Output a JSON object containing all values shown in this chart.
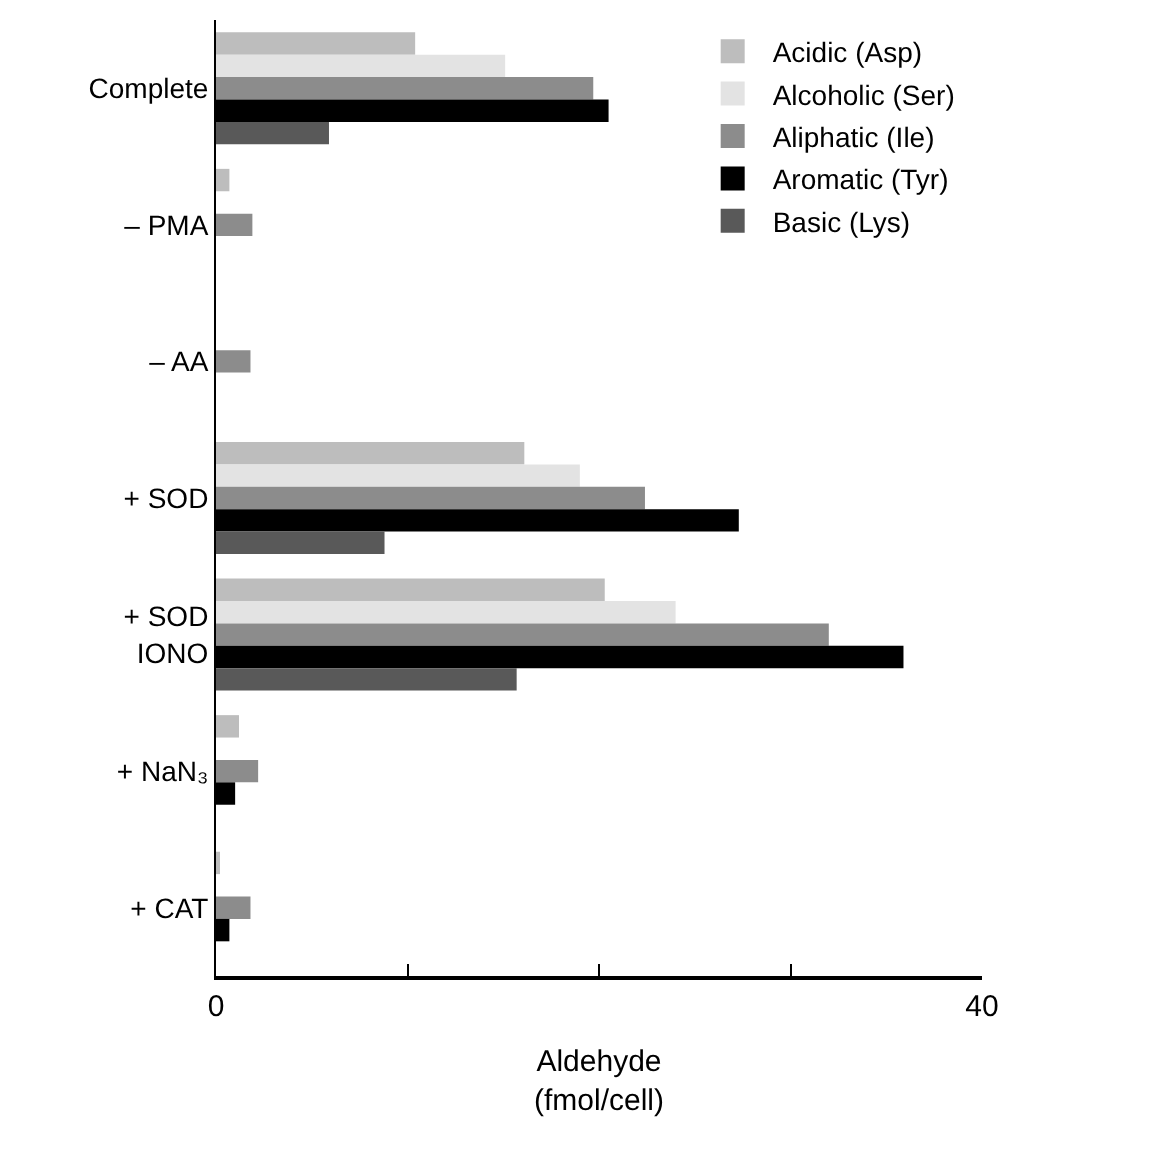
{
  "chart_data": {
    "type": "bar",
    "orientation": "horizontal",
    "xlabel": "Aldehyde\n(fmol/cell)",
    "categories": [
      "Complete",
      "– PMA",
      "– AA",
      "+ SOD",
      "+ SOD\nIONO",
      "+ NaN₃",
      "+ CAT"
    ],
    "series": [
      {
        "name": "Acidic (Asp)",
        "color": "#bdbdbd",
        "values": [
          10.4,
          0.7,
          0,
          16.1,
          20.3,
          1.2,
          0.2
        ]
      },
      {
        "name": "Alcoholic (Ser)",
        "color": "#e3e3e3",
        "values": [
          15.1,
          0,
          0,
          19.0,
          24.0,
          0,
          0
        ]
      },
      {
        "name": "Aliphatic (Ile)",
        "color": "#8c8c8c",
        "values": [
          19.7,
          1.9,
          1.8,
          22.4,
          32.0,
          2.2,
          1.8
        ]
      },
      {
        "name": "Aromatic (Tyr)",
        "color": "#000000",
        "values": [
          20.5,
          0,
          0,
          27.3,
          35.9,
          1.0,
          0.7
        ]
      },
      {
        "name": "Basic (Lys)",
        "color": "#595959",
        "values": [
          5.9,
          0,
          0,
          8.8,
          15.7,
          0,
          0
        ]
      }
    ],
    "xlim": [
      0,
      40
    ],
    "xticks": [
      0,
      {
        "value": 10,
        "label": null
      },
      {
        "value": 20,
        "label": null
      },
      {
        "value": 30,
        "label": null
      },
      40
    ],
    "grid": false,
    "legend": "top right"
  }
}
